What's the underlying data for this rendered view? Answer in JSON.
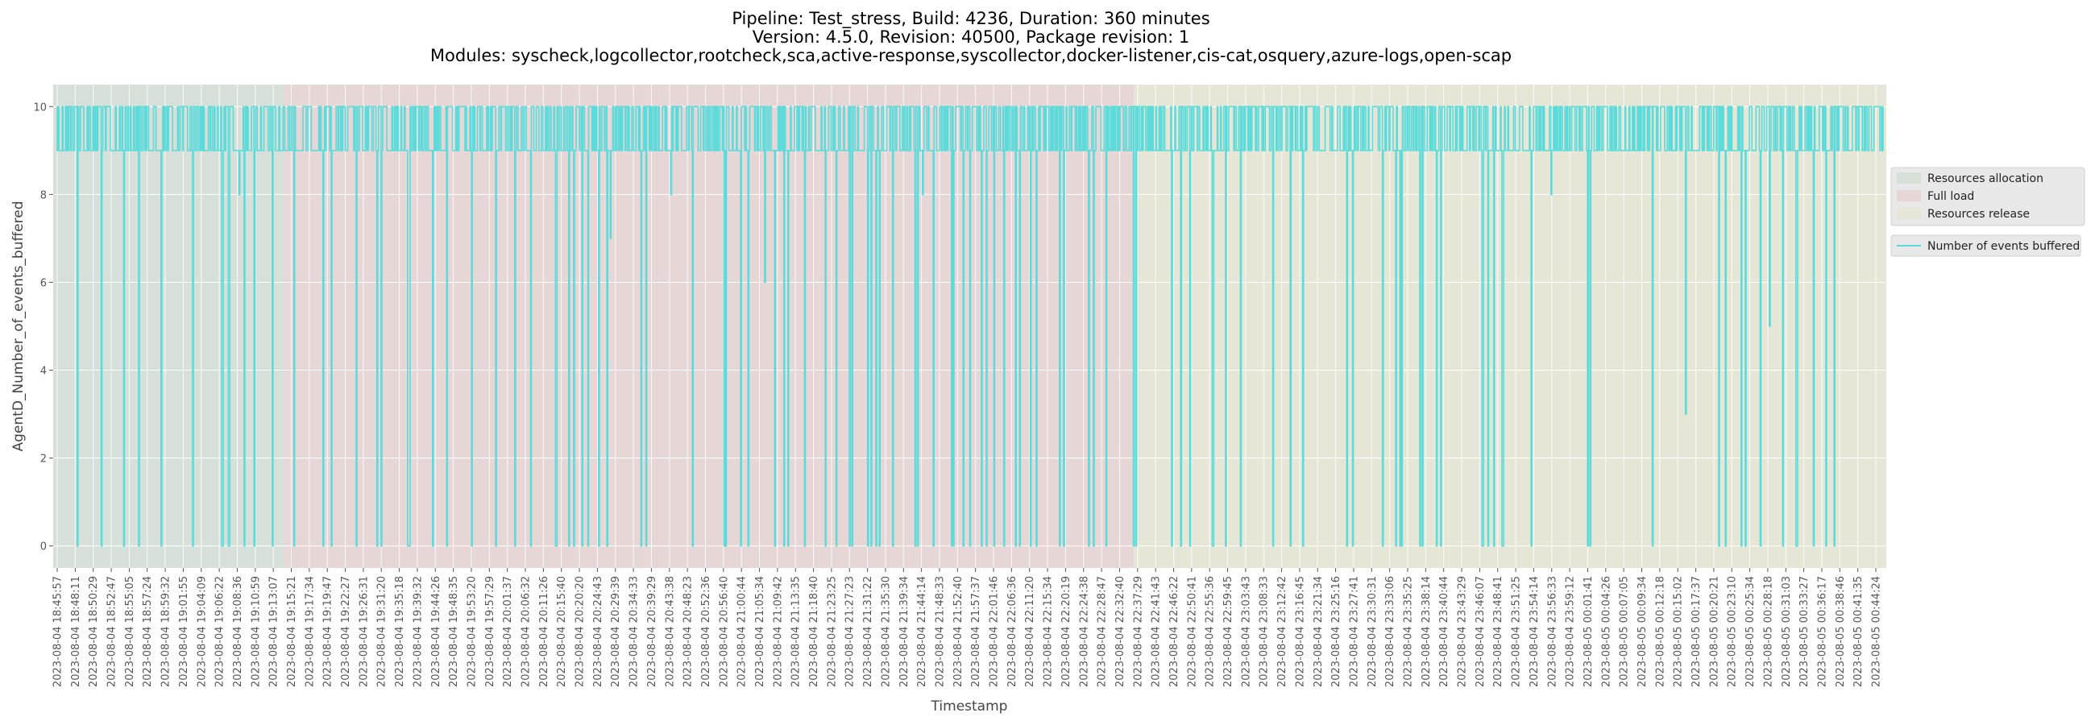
{
  "chart_data": {
    "type": "line",
    "title": [
      "Pipeline: Test_stress, Build: 4236, Duration: 360 minutes",
      "Version: 4.5.0, Revision: 40500, Package revision: 1",
      "Modules: syscheck,logcollector,rootcheck,sca,active-response,syscollector,docker-listener,cis-cat,osquery,azure-logs,open-scap"
    ],
    "xlabel": "Timestamp",
    "ylabel": "AgentD_Number_of_events_buffered",
    "ylim": [
      -0.5,
      10.5
    ],
    "yticks": [
      0,
      2,
      4,
      6,
      8,
      10
    ],
    "grid": true,
    "legend_position": "right",
    "phases": [
      {
        "name": "Resources allocation",
        "start_tick": 0,
        "end_tick": 12.6,
        "color": "#d6e0d8"
      },
      {
        "name": "Full load",
        "start_tick": 12.6,
        "end_tick": 59.8,
        "color": "#e6d6d6"
      },
      {
        "name": "Resources release",
        "start_tick": 59.8,
        "end_tick": 81,
        "color": "#e5e6d6"
      }
    ],
    "series": [
      {
        "name": "Number of events buffered",
        "color": "#5ddada",
        "note": "High-frequency samples mostly between 9 and 10 with frequent drops toward 0; values approximated from the figure.",
        "level_values": [
          10,
          9,
          0,
          10,
          9,
          8,
          10,
          9,
          10,
          0,
          9,
          10,
          9,
          10,
          7,
          9,
          10,
          0,
          10,
          9,
          10,
          9,
          6,
          10,
          9,
          10,
          0,
          9,
          10,
          9,
          8,
          10,
          9,
          2,
          10,
          9,
          10,
          0,
          9,
          10,
          9,
          10,
          5,
          9,
          10,
          9,
          0,
          10,
          9,
          10,
          9,
          8,
          10,
          9,
          10,
          0,
          9,
          10,
          3,
          10,
          9,
          10,
          9,
          0,
          10,
          9,
          10,
          9,
          7,
          10,
          9,
          10,
          9,
          0,
          10,
          9,
          10,
          4,
          9,
          10,
          9,
          10,
          0,
          9,
          10,
          9,
          10,
          8,
          9,
          10,
          9,
          0,
          10,
          9,
          10,
          9,
          6,
          10,
          9,
          10
        ]
      }
    ],
    "legend": [
      "Resources allocation",
      "Full load",
      "Resources release",
      "Number of events buffered"
    ],
    "x_tick_labels": [
      "2023-08-04 18:45:57",
      "2023-08-04 18:48:11",
      "2023-08-04 18:50:29",
      "2023-08-04 18:52:47",
      "2023-08-04 18:55:05",
      "2023-08-04 18:57:24",
      "2023-08-04 18:59:32",
      "2023-08-04 19:01:55",
      "2023-08-04 19:04:09",
      "2023-08-04 19:06:22",
      "2023-08-04 19:08:36",
      "2023-08-04 19:10:59",
      "2023-08-04 19:13:07",
      "2023-08-04 19:15:21",
      "2023-08-04 19:17:34",
      "2023-08-04 19:19:47",
      "2023-08-04 19:22:27",
      "2023-08-04 19:26:31",
      "2023-08-04 19:31:20",
      "2023-08-04 19:35:18",
      "2023-08-04 19:39:32",
      "2023-08-04 19:44:26",
      "2023-08-04 19:48:35",
      "2023-08-04 19:53:20",
      "2023-08-04 19:57:29",
      "2023-08-04 20:01:37",
      "2023-08-04 20:06:32",
      "2023-08-04 20:11:26",
      "2023-08-04 20:15:40",
      "2023-08-04 20:20:20",
      "2023-08-04 20:24:43",
      "2023-08-04 20:29:39",
      "2023-08-04 20:34:33",
      "2023-08-04 20:39:29",
      "2023-08-04 20:43:38",
      "2023-08-04 20:48:23",
      "2023-08-04 20:52:36",
      "2023-08-04 20:56:40",
      "2023-08-04 21:00:44",
      "2023-08-04 21:05:34",
      "2023-08-04 21:09:42",
      "2023-08-04 21:13:35",
      "2023-08-04 21:18:40",
      "2023-08-04 21:23:25",
      "2023-08-04 21:27:23",
      "2023-08-04 21:31:22",
      "2023-08-04 21:35:30",
      "2023-08-04 21:39:34",
      "2023-08-04 21:44:14",
      "2023-08-04 21:48:33",
      "2023-08-04 21:52:40",
      "2023-08-04 21:57:37",
      "2023-08-04 22:01:46",
      "2023-08-04 22:06:36",
      "2023-08-04 22:11:20",
      "2023-08-04 22:15:34",
      "2023-08-04 22:20:19",
      "2023-08-04 22:24:38",
      "2023-08-04 22:28:47",
      "2023-08-04 22:32:40",
      "2023-08-04 22:37:29",
      "2023-08-04 22:41:43",
      "2023-08-04 22:46:22",
      "2023-08-04 22:50:41",
      "2023-08-04 22:55:36",
      "2023-08-04 22:59:45",
      "2023-08-04 23:03:43",
      "2023-08-04 23:08:33",
      "2023-08-04 23:12:42",
      "2023-08-04 23:16:45",
      "2023-08-04 23:21:34",
      "2023-08-04 23:25:16",
      "2023-08-04 23:27:41",
      "2023-08-04 23:30:31",
      "2023-08-04 23:33:06",
      "2023-08-04 23:35:25",
      "2023-08-04 23:38:14",
      "2023-08-04 23:40:44",
      "2023-08-04 23:43:29",
      "2023-08-04 23:46:07",
      "2023-08-04 23:48:41",
      "2023-08-04 23:51:25",
      "2023-08-04 23:54:14",
      "2023-08-04 23:56:33",
      "2023-08-04 23:59:12",
      "2023-08-05 00:01:41",
      "2023-08-05 00:04:26",
      "2023-08-05 00:07:05",
      "2023-08-05 00:09:34",
      "2023-08-05 00:12:18",
      "2023-08-05 00:15:02",
      "2023-08-05 00:17:37",
      "2023-08-05 00:20:21",
      "2023-08-05 00:23:10",
      "2023-08-05 00:25:34",
      "2023-08-05 00:28:18",
      "2023-08-05 00:31:03",
      "2023-08-05 00:33:27",
      "2023-08-05 00:36:17",
      "2023-08-05 00:38:46",
      "2023-08-05 00:41:35",
      "2023-08-05 00:44:24"
    ]
  }
}
